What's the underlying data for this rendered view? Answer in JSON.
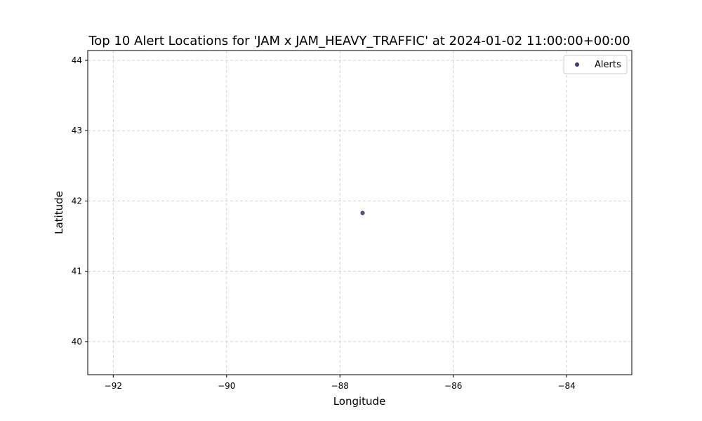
{
  "chart_data": {
    "type": "scatter",
    "title": "Top 10 Alert Locations for 'JAM x JAM_HEAVY_TRAFFIC' at 2024-01-02 11:00:00+00:00",
    "xlabel": "Longitude",
    "ylabel": "Latitude",
    "xlim": [
      -92.45,
      -82.85
    ],
    "ylim": [
      39.53,
      44.14
    ],
    "xticks": [
      -92,
      -90,
      -88,
      -86,
      -84
    ],
    "yticks": [
      40,
      41,
      42,
      43,
      44
    ],
    "xtick_labels": [
      "−92",
      "−90",
      "−88",
      "−86",
      "−84"
    ],
    "ytick_labels": [
      "40",
      "41",
      "42",
      "43",
      "44"
    ],
    "grid": true,
    "legend_position": "upper-right",
    "series": [
      {
        "name": "Alerts",
        "color": "#3f3c8c",
        "points": [
          {
            "x": -87.6,
            "y": 41.83
          }
        ]
      }
    ]
  }
}
